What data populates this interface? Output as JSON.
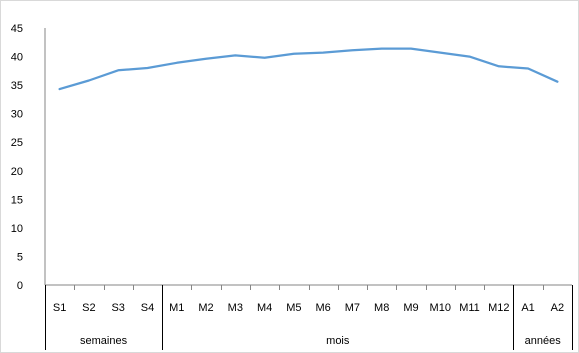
{
  "chart_data": {
    "type": "line",
    "categories": [
      "S1",
      "S2",
      "S3",
      "S4",
      "M1",
      "M2",
      "M3",
      "M4",
      "M5",
      "M6",
      "M7",
      "M8",
      "M9",
      "M10",
      "M11",
      "M12",
      "A1",
      "A2"
    ],
    "groups": [
      {
        "label": "semaines",
        "count": 4
      },
      {
        "label": "mois",
        "count": 12
      },
      {
        "label": "années",
        "count": 2
      }
    ],
    "series": [
      {
        "values": [
          34.3,
          35.8,
          37.6,
          38.0,
          38.9,
          39.6,
          40.2,
          39.8,
          40.5,
          40.7,
          41.1,
          41.4,
          41.4,
          40.7,
          40.0,
          38.3,
          37.9,
          35.6
        ],
        "color": "#5b9bd5"
      }
    ],
    "ylim": [
      0,
      45
    ],
    "yticks": [
      0,
      5,
      10,
      15,
      20,
      25,
      30,
      35,
      40,
      45
    ],
    "grid": false,
    "title": "",
    "xlabel": "",
    "ylabel": ""
  }
}
